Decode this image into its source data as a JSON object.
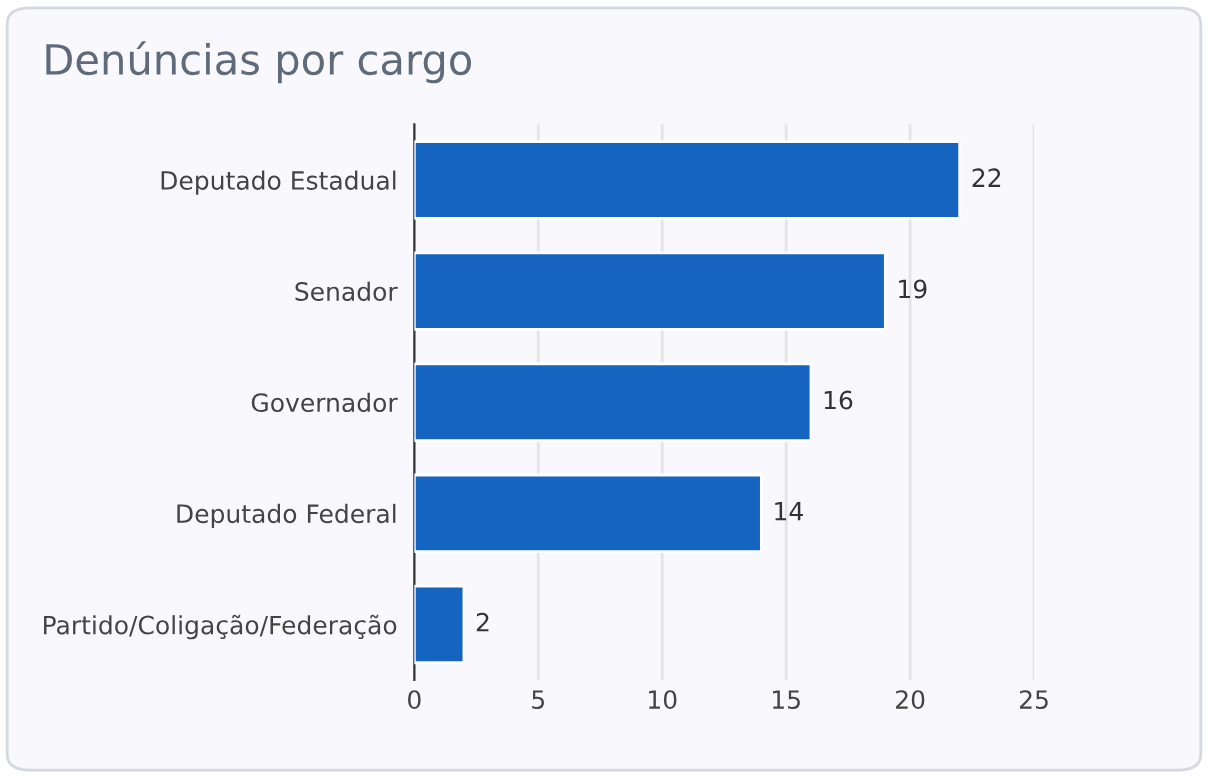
{
  "chart_data": {
    "type": "bar",
    "orientation": "horizontal",
    "title": "Denúncias por cargo",
    "categories": [
      "Deputado Estadual",
      "Senador",
      "Governador",
      "Deputado Federal",
      "Partido/Coligação/Federação"
    ],
    "values": [
      22,
      19,
      16,
      14,
      2
    ],
    "color": "#1565c0",
    "xlim": [
      0,
      25
    ],
    "xticks": [
      0,
      5,
      10,
      15,
      20,
      25
    ],
    "grid": "x",
    "data_labels": true
  }
}
